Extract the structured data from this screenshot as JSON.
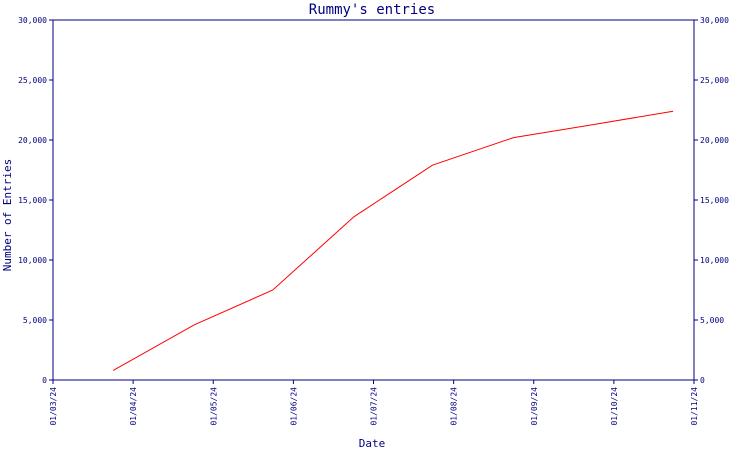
{
  "chart_data": {
    "type": "line",
    "title": "Rummy's entries",
    "xlabel": "Date",
    "ylabel": "Number of Entries",
    "x_ticks": [
      "01/03/24",
      "01/04/24",
      "01/05/24",
      "01/06/24",
      "01/07/24",
      "01/08/24",
      "01/09/24",
      "01/10/24",
      "01/11/24"
    ],
    "y_ticks": [
      "0",
      "5,000",
      "10,000",
      "15,000",
      "20,000",
      "25,000",
      "30,000"
    ],
    "ylim": [
      0,
      30000
    ],
    "xlim": [
      "2024-03-01",
      "2024-11-01"
    ],
    "grid": false,
    "series": [
      {
        "color": "#ff0000",
        "x": [
          "2024-03-24",
          "2024-04-24",
          "2024-05-24",
          "2024-06-24",
          "2024-07-24",
          "2024-08-24",
          "2024-09-24",
          "2024-10-24"
        ],
        "values": [
          800,
          4600,
          7500,
          13600,
          17900,
          20200,
          21300,
          22400
        ]
      }
    ]
  }
}
